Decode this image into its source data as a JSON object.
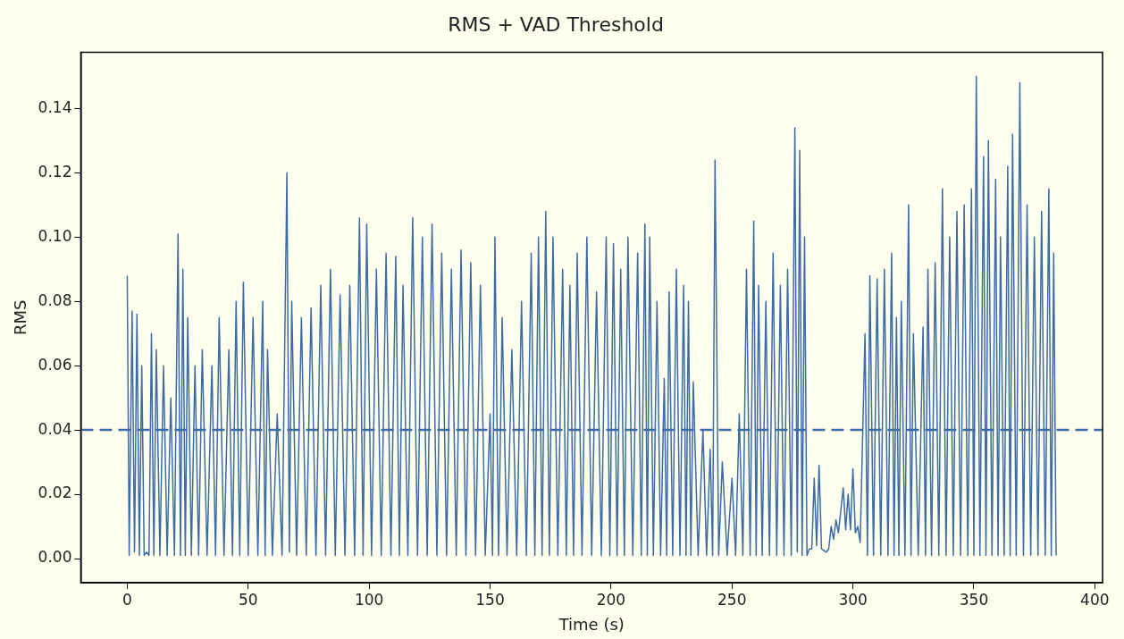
{
  "chart_data": {
    "type": "line",
    "title": "RMS + VAD Threshold",
    "xlabel": "Time (s)",
    "ylabel": "RMS",
    "xlim": [
      -19.2,
      403.2
    ],
    "ylim": [
      -0.0075,
      0.1575
    ],
    "xticks": [
      0,
      50,
      100,
      150,
      200,
      250,
      300,
      350,
      400
    ],
    "yticks": [
      {
        "value": 0,
        "label": "0.00"
      },
      {
        "value": 0.02,
        "label": "0.02"
      },
      {
        "value": 0.04,
        "label": "0.04"
      },
      {
        "value": 0.06,
        "label": "0.06"
      },
      {
        "value": 0.08,
        "label": "0.08"
      },
      {
        "value": 0.1,
        "label": "0.10"
      },
      {
        "value": 0.12,
        "label": "0.12"
      },
      {
        "value": 0.14,
        "label": "0.14"
      }
    ],
    "ref_lines": [
      {
        "axis": "y",
        "value": 0.04,
        "color": "#3d6ba6",
        "line_style": "dashed"
      }
    ],
    "series": [
      {
        "color": "#3d6ba6",
        "x": [
          0,
          0.8,
          2,
          3,
          4,
          5,
          6,
          7,
          8,
          9,
          10,
          11,
          12,
          13.5,
          15,
          16.5,
          18,
          19.5,
          21,
          22,
          23,
          24,
          25,
          26.5,
          28,
          29.5,
          31,
          33,
          35,
          36.5,
          38,
          40,
          42,
          43.5,
          45,
          46.5,
          48,
          50,
          52,
          54,
          56,
          57,
          58,
          60,
          62,
          64,
          66,
          67,
          68,
          70,
          72,
          74,
          76,
          78,
          80,
          82,
          84,
          86,
          88,
          90,
          92,
          94,
          96,
          97.5,
          99,
          101,
          103,
          105,
          107,
          109,
          111,
          112.5,
          114,
          116,
          118,
          120,
          122,
          124,
          126,
          128,
          130,
          132,
          134,
          136,
          138,
          140,
          142,
          144,
          146,
          148,
          150,
          151,
          152,
          153.5,
          155,
          157,
          159,
          161,
          163,
          165,
          167,
          168.5,
          170,
          171.5,
          173,
          174.5,
          176,
          178,
          180,
          181.5,
          183,
          184.5,
          186,
          188,
          190,
          192,
          194,
          196,
          198,
          199.5,
          201,
          202.5,
          204,
          205.5,
          207,
          209,
          211,
          212.5,
          214,
          215,
          216,
          217.5,
          219,
          220.5,
          222,
          223,
          224,
          225.5,
          227,
          228.5,
          230,
          231,
          232,
          233,
          234,
          236,
          238,
          239.5,
          241,
          242,
          243,
          244.5,
          246,
          248,
          250,
          251.5,
          253,
          254.5,
          256,
          257.5,
          259,
          260,
          261,
          262.5,
          264,
          265.5,
          267,
          268.5,
          270,
          271.5,
          273,
          274.5,
          276,
          277,
          278,
          279,
          280,
          281,
          282,
          283,
          284,
          285,
          286,
          287,
          289,
          290,
          291,
          292,
          293,
          294,
          296,
          297,
          298,
          299,
          300,
          301,
          302,
          303,
          305,
          306,
          307,
          308.5,
          310,
          311.5,
          313,
          314.5,
          316,
          317,
          318,
          319,
          320,
          321.5,
          323,
          324,
          325,
          327,
          329,
          330,
          331,
          332.5,
          334,
          335.5,
          337,
          338.5,
          340,
          341.5,
          343,
          344.5,
          346,
          347.5,
          349,
          350,
          351,
          352.5,
          354,
          355,
          356,
          357.5,
          359,
          360,
          361,
          362.5,
          364,
          365,
          366,
          367.5,
          369,
          370.5,
          372,
          373.5,
          375,
          376.5,
          378,
          379.5,
          381,
          382,
          383,
          384
        ],
        "values": [
          0.088,
          0.001,
          0.077,
          0.002,
          0.076,
          0.001,
          0.06,
          0.001,
          0.002,
          0.001,
          0.07,
          0.001,
          0.065,
          0.001,
          0.06,
          0.001,
          0.05,
          0.001,
          0.101,
          0.001,
          0.09,
          0.001,
          0.075,
          0.001,
          0.06,
          0.001,
          0.065,
          0.001,
          0.06,
          0.001,
          0.075,
          0.001,
          0.065,
          0.001,
          0.08,
          0.001,
          0.086,
          0.001,
          0.075,
          0.001,
          0.08,
          0.001,
          0.065,
          0.001,
          0.045,
          0.001,
          0.12,
          0.002,
          0.08,
          0.001,
          0.075,
          0.001,
          0.078,
          0.001,
          0.085,
          0.001,
          0.09,
          0.001,
          0.082,
          0.001,
          0.085,
          0.001,
          0.106,
          0.001,
          0.104,
          0.001,
          0.09,
          0.001,
          0.095,
          0.001,
          0.094,
          0.001,
          0.085,
          0.001,
          0.106,
          0.001,
          0.1,
          0.001,
          0.104,
          0.001,
          0.095,
          0.001,
          0.09,
          0.001,
          0.096,
          0.001,
          0.092,
          0.001,
          0.085,
          0.001,
          0.045,
          0.001,
          0.1,
          0.001,
          0.075,
          0.001,
          0.065,
          0.001,
          0.08,
          0.001,
          0.095,
          0.001,
          0.1,
          0.001,
          0.108,
          0.001,
          0.1,
          0.001,
          0.09,
          0.001,
          0.085,
          0.001,
          0.095,
          0.001,
          0.1,
          0.001,
          0.083,
          0.001,
          0.1,
          0.001,
          0.098,
          0.001,
          0.09,
          0.001,
          0.1,
          0.001,
          0.095,
          0.001,
          0.104,
          0.001,
          0.1,
          0.001,
          0.08,
          0.001,
          0.056,
          0.001,
          0.083,
          0.001,
          0.09,
          0.001,
          0.085,
          0.001,
          0.08,
          0.001,
          0.055,
          0.001,
          0.04,
          0.001,
          0.034,
          0.001,
          0.124,
          0.001,
          0.03,
          0.001,
          0.025,
          0.001,
          0.045,
          0.001,
          0.09,
          0.001,
          0.105,
          0.001,
          0.085,
          0.001,
          0.08,
          0.001,
          0.095,
          0.001,
          0.085,
          0.001,
          0.09,
          0.001,
          0.134,
          0.002,
          0.127,
          0.001,
          0.1,
          0.001,
          0.003,
          0.003,
          0.025,
          0.004,
          0.029,
          0.003,
          0.002,
          0.003,
          0.01,
          0.006,
          0.012,
          0.008,
          0.022,
          0.009,
          0.02,
          0.009,
          0.028,
          0.008,
          0.01,
          0.005,
          0.07,
          0.001,
          0.088,
          0.001,
          0.087,
          0.001,
          0.09,
          0.001,
          0.095,
          0.001,
          0.075,
          0.001,
          0.08,
          0.001,
          0.11,
          0.001,
          0.07,
          0.001,
          0.072,
          0.001,
          0.09,
          0.001,
          0.092,
          0.001,
          0.115,
          0.001,
          0.1,
          0.001,
          0.108,
          0.001,
          0.11,
          0.001,
          0.115,
          0.001,
          0.15,
          0.001,
          0.125,
          0.001,
          0.13,
          0.001,
          0.118,
          0.001,
          0.1,
          0.001,
          0.122,
          0.001,
          0.132,
          0.001,
          0.148,
          0.001,
          0.11,
          0.001,
          0.1,
          0.001,
          0.108,
          0.001,
          0.115,
          0.001,
          0.095,
          0.001
        ]
      }
    ]
  }
}
